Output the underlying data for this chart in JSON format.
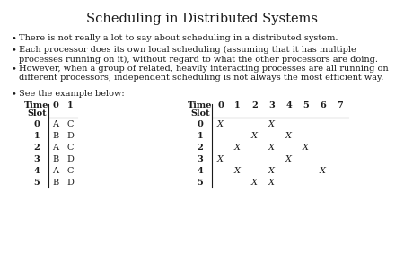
{
  "title": "Scheduling in Distributed Systems",
  "bullets": [
    "There is not really a lot to say about scheduling in a distributed system.",
    "Each processor does its own local scheduling (assuming that it has multiple\nprocesses running on it), without regard to what the other processors are doing.",
    "However, when a group of related, heavily interacting processes are all running on\ndifferent processors, independent scheduling is not always the most efficient way.",
    "See the example below:"
  ],
  "table1_rows": [
    [
      "0",
      "A",
      "C"
    ],
    [
      "1",
      "B",
      "D"
    ],
    [
      "2",
      "A",
      "C"
    ],
    [
      "3",
      "B",
      "D"
    ],
    [
      "4",
      "A",
      "C"
    ],
    [
      "5",
      "B",
      "D"
    ]
  ],
  "table2_rows": [
    [
      "0",
      "X",
      "",
      "",
      "X",
      "",
      "",
      ""
    ],
    [
      "1",
      "",
      "",
      "X",
      "",
      "X",
      "",
      ""
    ],
    [
      "2",
      "",
      "X",
      "",
      "X",
      "",
      "X",
      ""
    ],
    [
      "3",
      "X",
      "",
      "",
      "",
      "X",
      "",
      ""
    ],
    [
      "4",
      "",
      "X",
      "",
      "X",
      "",
      "",
      "X"
    ],
    [
      "5",
      "",
      "",
      "X",
      "X",
      "",
      "",
      ""
    ]
  ],
  "text_color": "#1a1a1a"
}
